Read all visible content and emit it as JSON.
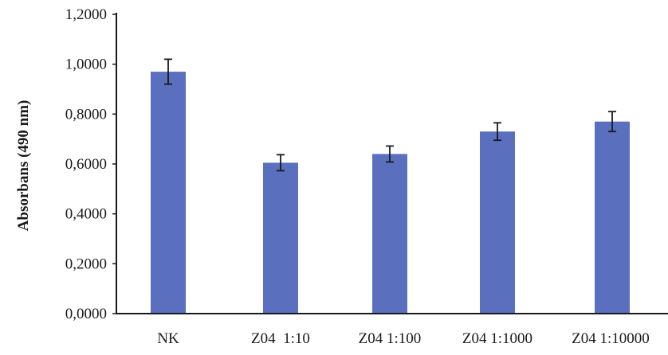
{
  "chart_data": {
    "type": "bar",
    "title": "",
    "xlabel": "",
    "ylabel": "Absorbans (490 nm)",
    "ylim": [
      0,
      1.2
    ],
    "y_ticks": [
      "0,0000",
      "0,2000",
      "0,4000",
      "0,6000",
      "0,8000",
      "1,0000",
      "1,2000"
    ],
    "y_tick_values": [
      0,
      0.2,
      0.4,
      0.6,
      0.8,
      1.0,
      1.2
    ],
    "categories": [
      "NK",
      "Z04  1:10",
      "Z04 1:100",
      "Z04 1:1000",
      "Z04 1:10000"
    ],
    "values": [
      0.97,
      0.605,
      0.64,
      0.73,
      0.77
    ],
    "errors": [
      0.05,
      0.032,
      0.032,
      0.035,
      0.04
    ],
    "grid": false,
    "legend": "none",
    "bar_color": "#5b6fbf"
  }
}
